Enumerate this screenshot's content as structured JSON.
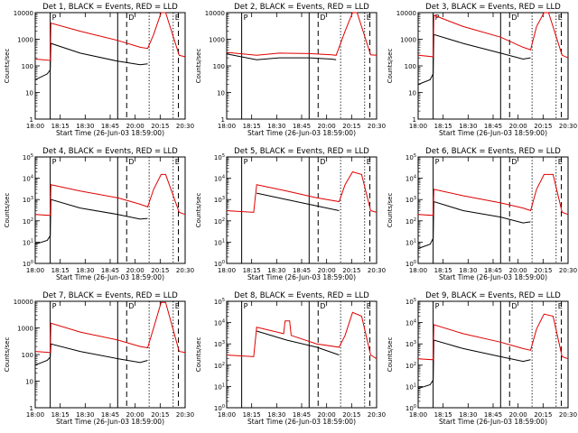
{
  "figure": {
    "x_ticks": [
      "18:00",
      "18:15",
      "18:30",
      "18:45",
      "20:00",
      "20:15",
      "20:30"
    ],
    "xlabel": "Start Time (26-Jun-03 18:59:00)",
    "ylabel": "Counts/sec",
    "legend_text": "BLACK = Events, RED = LLD",
    "colors": {
      "events": "#000000",
      "lld": "#e00000"
    }
  },
  "chart_data": [
    {
      "type": "line",
      "title": "Det 1",
      "yscale": "log",
      "ylim": [
        1,
        10000
      ],
      "y_tick_style": "plain",
      "y_ticks": [
        "1",
        "10",
        "100",
        "1000",
        "10000"
      ],
      "x_ticks": [
        "18:00",
        "18:15",
        "18:30",
        "18:45",
        "20:00",
        "20:15",
        "20:30"
      ],
      "xlabel": "Start Time (26-Jun-03 18:59:00)",
      "ylabel": "Counts/sec",
      "time_markers": [
        {
          "label": "P",
          "style": "solid"
        },
        {
          "label": "D",
          "style": "dashed"
        },
        {
          "label": "E",
          "style": "dashed"
        }
      ],
      "series": [
        {
          "name": "Events",
          "color": "#000000",
          "x": [
            0,
            0.08,
            0.1,
            0.105,
            0.3,
            0.55,
            0.7,
            0.75
          ],
          "y": [
            30,
            50,
            70,
            700,
            300,
            150,
            110,
            120
          ]
        },
        {
          "name": "LLD",
          "color": "#e00000",
          "x": [
            0,
            0.1,
            0.105,
            0.3,
            0.55,
            0.7,
            0.75,
            0.79,
            0.84,
            0.87,
            0.96,
            1.0
          ],
          "y": [
            180,
            160,
            4000,
            2000,
            900,
            500,
            450,
            1500,
            10000,
            10000,
            250,
            220
          ]
        }
      ]
    },
    {
      "type": "line",
      "title": "Det 2",
      "yscale": "log",
      "ylim": [
        1,
        10000
      ],
      "y_tick_style": "plain",
      "y_ticks": [
        "1",
        "10",
        "100",
        "1000",
        "10000"
      ],
      "x_ticks": [
        "18:00",
        "18:15",
        "18:30",
        "18:45",
        "20:00",
        "20:15",
        "20:30"
      ],
      "xlabel": "Start Time (26-Jun-03 18:59:00)",
      "ylabel": "Counts/sec",
      "time_markers": [
        {
          "label": "P",
          "style": "solid"
        },
        {
          "label": "D",
          "style": "dashed"
        },
        {
          "label": "E",
          "style": "dashed"
        }
      ],
      "series": [
        {
          "name": "Events",
          "color": "#000000",
          "x": [
            0,
            0.2,
            0.35,
            0.55,
            0.7,
            0.73
          ],
          "y": [
            280,
            170,
            200,
            200,
            180,
            170
          ]
        },
        {
          "name": "LLD",
          "color": "#e00000",
          "x": [
            0,
            0.2,
            0.35,
            0.55,
            0.7,
            0.73,
            0.79,
            0.84,
            0.87,
            0.96,
            1.0
          ],
          "y": [
            320,
            250,
            300,
            290,
            260,
            250,
            2000,
            10000,
            10000,
            260,
            250
          ]
        }
      ]
    },
    {
      "type": "line",
      "title": "Det 3",
      "yscale": "log",
      "ylim": [
        1,
        10000
      ],
      "y_tick_style": "plain",
      "y_ticks": [
        "1",
        "10",
        "100",
        "1000",
        "10000"
      ],
      "x_ticks": [
        "18:00",
        "18:15",
        "18:30",
        "18:45",
        "20:00",
        "20:15",
        "20:30"
      ],
      "xlabel": "Start Time (26-Jun-03 18:59:00)",
      "ylabel": "Counts/sec",
      "time_markers": [
        {
          "label": "P",
          "style": "solid"
        },
        {
          "label": "D",
          "style": "dashed"
        },
        {
          "label": "E",
          "style": "dashed"
        }
      ],
      "series": [
        {
          "name": "Events",
          "color": "#000000",
          "x": [
            0,
            0.08,
            0.1,
            0.105,
            0.3,
            0.55,
            0.7,
            0.75
          ],
          "y": [
            20,
            30,
            50,
            1500,
            700,
            300,
            180,
            200
          ]
        },
        {
          "name": "LLD",
          "color": "#e00000",
          "x": [
            0,
            0.1,
            0.105,
            0.3,
            0.55,
            0.7,
            0.75,
            0.79,
            0.84,
            0.87,
            0.96,
            1.0
          ],
          "y": [
            250,
            220,
            8000,
            3000,
            1200,
            500,
            400,
            3000,
            10000,
            10000,
            250,
            200
          ]
        }
      ]
    },
    {
      "type": "line",
      "title": "Det 4",
      "yscale": "log",
      "ylim": [
        1,
        100000
      ],
      "y_tick_style": "exp",
      "y_ticks": [
        "10^0",
        "10^1",
        "10^2",
        "10^3",
        "10^4",
        "10^5"
      ],
      "x_ticks": [
        "18:00",
        "18:15",
        "18:30",
        "18:45",
        "20:00",
        "20:15",
        "20:30"
      ],
      "xlabel": "Start Time (26-Jun-03 18:59:00)",
      "ylabel": "Counts/sec",
      "time_markers": [
        {
          "label": "P",
          "style": "solid"
        },
        {
          "label": "D",
          "style": "dashed"
        },
        {
          "label": "E",
          "style": "dashed"
        }
      ],
      "series": [
        {
          "name": "Events",
          "color": "#000000",
          "x": [
            0,
            0.08,
            0.1,
            0.105,
            0.3,
            0.55,
            0.7,
            0.75
          ],
          "y": [
            8,
            12,
            20,
            1000,
            400,
            200,
            120,
            130
          ]
        },
        {
          "name": "LLD",
          "color": "#e00000",
          "x": [
            0,
            0.1,
            0.105,
            0.3,
            0.55,
            0.7,
            0.75,
            0.79,
            0.84,
            0.87,
            0.96,
            1.0
          ],
          "y": [
            200,
            180,
            5000,
            2500,
            1200,
            600,
            450,
            3000,
            15000,
            15000,
            250,
            200
          ]
        }
      ]
    },
    {
      "type": "line",
      "title": "Det 5",
      "yscale": "log",
      "ylim": [
        1,
        100000
      ],
      "y_tick_style": "exp",
      "y_ticks": [
        "10^0",
        "10^1",
        "10^2",
        "10^3",
        "10^4",
        "10^5"
      ],
      "x_ticks": [
        "18:00",
        "18:15",
        "18:30",
        "18:45",
        "20:00",
        "20:15",
        "20:30"
      ],
      "xlabel": "Start Time (26-Jun-03 18:59:00)",
      "ylabel": "Counts/sec",
      "time_markers": [
        {
          "label": "P",
          "style": "solid"
        },
        {
          "label": "D",
          "style": "dashed"
        },
        {
          "label": "E",
          "style": "dashed"
        }
      ],
      "series": [
        {
          "name": "Events",
          "color": "#000000",
          "x": [
            0.2,
            0.4,
            0.6,
            0.75
          ],
          "y": [
            2000,
            1000,
            500,
            300
          ]
        },
        {
          "name": "LLD",
          "color": "#e00000",
          "x": [
            0,
            0.18,
            0.2,
            0.4,
            0.6,
            0.75,
            0.79,
            0.84,
            0.9,
            0.96,
            1.0
          ],
          "y": [
            300,
            250,
            5000,
            2500,
            1200,
            800,
            5000,
            20000,
            15000,
            300,
            250
          ]
        }
      ]
    },
    {
      "type": "line",
      "title": "Det 6",
      "yscale": "log",
      "ylim": [
        1,
        100000
      ],
      "y_tick_style": "exp",
      "y_ticks": [
        "10^0",
        "10^1",
        "10^2",
        "10^3",
        "10^4",
        "10^5"
      ],
      "x_ticks": [
        "18:00",
        "18:15",
        "18:30",
        "18:45",
        "20:00",
        "20:15",
        "20:30"
      ],
      "xlabel": "Start Time (26-Jun-03 18:59:00)",
      "ylabel": "Counts/sec",
      "time_markers": [
        {
          "label": "P",
          "style": "solid"
        },
        {
          "label": "D",
          "style": "dashed"
        },
        {
          "label": "E",
          "style": "dashed"
        }
      ],
      "series": [
        {
          "name": "Events",
          "color": "#000000",
          "x": [
            0,
            0.08,
            0.1,
            0.105,
            0.3,
            0.55,
            0.7,
            0.75
          ],
          "y": [
            5,
            8,
            15,
            800,
            300,
            150,
            80,
            90
          ]
        },
        {
          "name": "LLD",
          "color": "#e00000",
          "x": [
            0,
            0.1,
            0.105,
            0.3,
            0.55,
            0.7,
            0.75,
            0.79,
            0.84,
            0.9,
            0.96,
            1.0
          ],
          "y": [
            200,
            180,
            3000,
            1500,
            700,
            400,
            300,
            3000,
            15000,
            15000,
            250,
            200
          ]
        }
      ]
    },
    {
      "type": "line",
      "title": "Det 7",
      "yscale": "log",
      "ylim": [
        1,
        10000
      ],
      "y_tick_style": "plain",
      "y_ticks": [
        "1",
        "10",
        "100",
        "1000",
        "10000"
      ],
      "x_ticks": [
        "18:00",
        "18:15",
        "18:30",
        "18:45",
        "20:00",
        "20:15",
        "20:30"
      ],
      "xlabel": "Start Time (26-Jun-03 18:59:00)",
      "ylabel": "Counts/sec",
      "time_markers": [
        {
          "label": "P",
          "style": "solid"
        },
        {
          "label": "D",
          "style": "dashed"
        },
        {
          "label": "E",
          "style": "dashed"
        }
      ],
      "series": [
        {
          "name": "Events",
          "color": "#000000",
          "x": [
            0,
            0.08,
            0.1,
            0.105,
            0.3,
            0.55,
            0.7,
            0.75
          ],
          "y": [
            40,
            60,
            80,
            250,
            130,
            70,
            50,
            60
          ]
        },
        {
          "name": "LLD",
          "color": "#e00000",
          "x": [
            0,
            0.1,
            0.105,
            0.3,
            0.55,
            0.7,
            0.75,
            0.79,
            0.84,
            0.87,
            0.96,
            1.0
          ],
          "y": [
            130,
            120,
            1500,
            700,
            350,
            200,
            180,
            1000,
            9000,
            9000,
            130,
            120
          ]
        }
      ]
    },
    {
      "type": "line",
      "title": "Det 8",
      "yscale": "log",
      "ylim": [
        1,
        100000
      ],
      "y_tick_style": "exp",
      "y_ticks": [
        "10^0",
        "10^1",
        "10^2",
        "10^3",
        "10^4",
        "10^5"
      ],
      "x_ticks": [
        "18:00",
        "18:15",
        "18:30",
        "18:45",
        "20:00",
        "20:15",
        "20:30"
      ],
      "xlabel": "Start Time (26-Jun-03 18:59:00)",
      "ylabel": "Counts/sec",
      "time_markers": [
        {
          "label": "P",
          "style": "solid"
        },
        {
          "label": "D",
          "style": "dashed"
        },
        {
          "label": "E",
          "style": "dashed"
        }
      ],
      "series": [
        {
          "name": "Events",
          "color": "#000000",
          "x": [
            0.2,
            0.4,
            0.6,
            0.75
          ],
          "y": [
            4000,
            1500,
            700,
            300
          ]
        },
        {
          "name": "LLD",
          "color": "#e00000",
          "x": [
            0,
            0.18,
            0.2,
            0.38,
            0.39,
            0.42,
            0.43,
            0.6,
            0.75,
            0.79,
            0.84,
            0.9,
            0.96,
            1.0
          ],
          "y": [
            300,
            250,
            6000,
            3000,
            12000,
            12000,
            2500,
            1000,
            700,
            2500,
            30000,
            20000,
            300,
            200
          ]
        }
      ]
    },
    {
      "type": "line",
      "title": "Det 9",
      "yscale": "log",
      "ylim": [
        1,
        100000
      ],
      "y_tick_style": "exp",
      "y_ticks": [
        "10^0",
        "10^1",
        "10^2",
        "10^3",
        "10^4",
        "10^5"
      ],
      "x_ticks": [
        "18:00",
        "18:15",
        "18:30",
        "18:45",
        "20:00",
        "20:15",
        "20:30"
      ],
      "xlabel": "Start Time (26-Jun-03 18:59:00)",
      "ylabel": "Counts/sec",
      "time_markers": [
        {
          "label": "P",
          "style": "solid"
        },
        {
          "label": "D",
          "style": "dashed"
        },
        {
          "label": "E",
          "style": "dashed"
        }
      ],
      "series": [
        {
          "name": "Events",
          "color": "#000000",
          "x": [
            0,
            0.08,
            0.1,
            0.105,
            0.3,
            0.55,
            0.7,
            0.75
          ],
          "y": [
            8,
            12,
            20,
            1500,
            600,
            250,
            150,
            180
          ]
        },
        {
          "name": "LLD",
          "color": "#e00000",
          "x": [
            0,
            0.1,
            0.105,
            0.3,
            0.55,
            0.7,
            0.75,
            0.79,
            0.84,
            0.9,
            0.96,
            1.0
          ],
          "y": [
            200,
            180,
            8000,
            3000,
            1200,
            600,
            500,
            5000,
            25000,
            20000,
            250,
            200
          ]
        }
      ]
    }
  ]
}
